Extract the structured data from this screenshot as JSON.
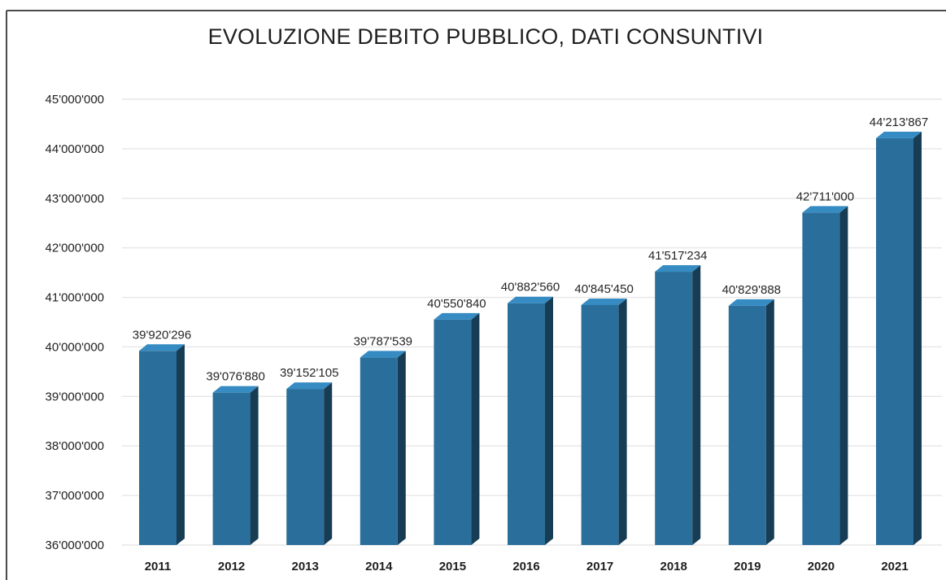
{
  "chart_data": {
    "type": "bar",
    "title": "EVOLUZIONE DEBITO PUBBLICO, DATI CONSUNTIVI",
    "xlabel": "",
    "ylabel": "",
    "ylim": [
      36000000,
      45000000
    ],
    "grid": true,
    "legend": "none",
    "bar_color": "#2a6f9b",
    "categories": [
      "2011",
      "2012",
      "2013",
      "2014",
      "2015",
      "2016",
      "2017",
      "2018",
      "2019",
      "2020",
      "2021"
    ],
    "values": [
      39920296,
      39076880,
      39152105,
      39787539,
      40550840,
      40882560,
      40845450,
      41517234,
      40829888,
      42711000,
      44213867
    ],
    "data_labels": [
      "39'920'296",
      "39'076'880",
      "39'152'105",
      "39'787'539",
      "40'550'840",
      "40'882'560",
      "40'845'450",
      "41'517'234",
      "40'829'888",
      "42'711'000",
      "44'213'867"
    ],
    "y_ticks": [
      36000000,
      37000000,
      38000000,
      39000000,
      40000000,
      41000000,
      42000000,
      43000000,
      44000000,
      45000000
    ],
    "y_tick_labels": [
      "36'000'000",
      "37'000'000",
      "38'000'000",
      "39'000'000",
      "40'000'000",
      "41'000'000",
      "42'000'000",
      "43'000'000",
      "44'000'000",
      "45'000'000"
    ]
  }
}
